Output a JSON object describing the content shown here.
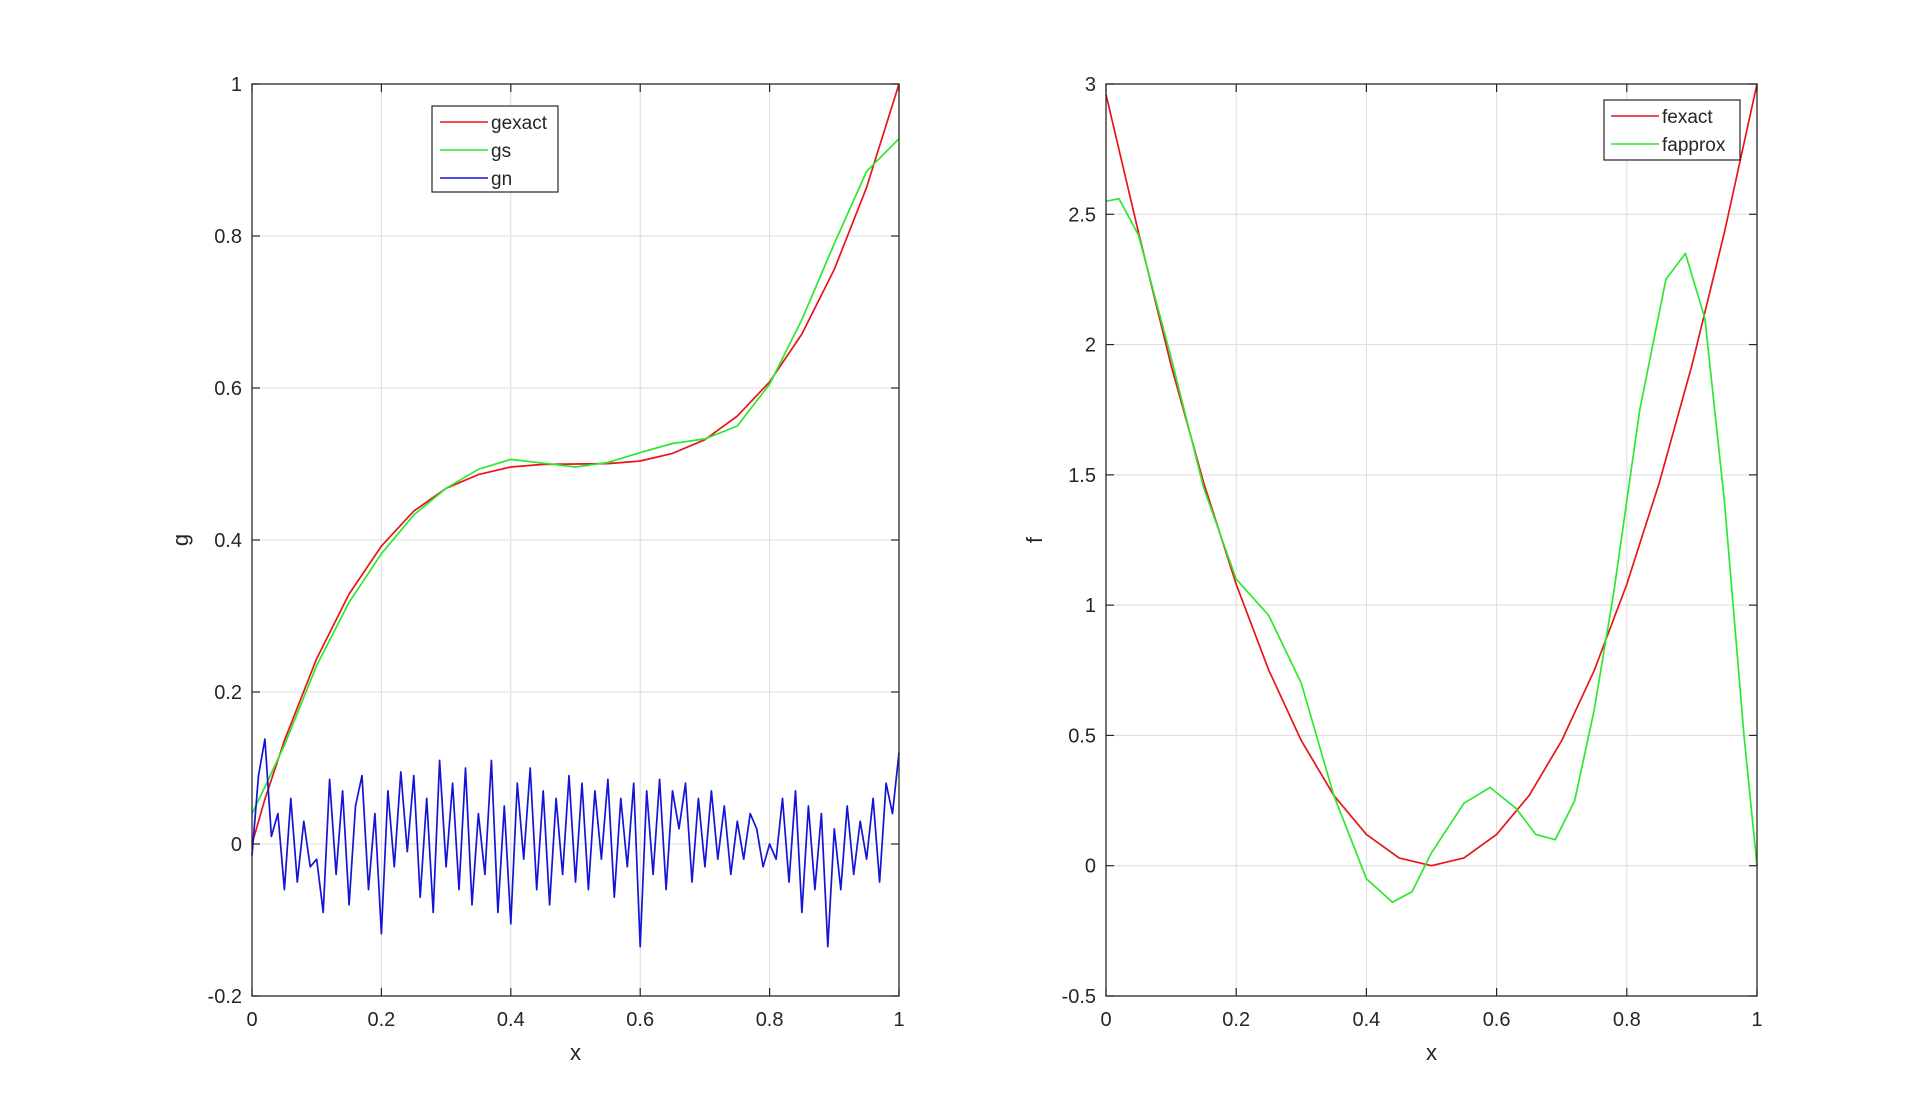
{
  "chart_data": [
    {
      "type": "line",
      "xlabel": "x",
      "ylabel": "g",
      "xlim": [
        0,
        1
      ],
      "ylim": [
        -0.2,
        1
      ],
      "xticks": [
        0,
        0.2,
        0.4,
        0.6,
        0.8,
        1
      ],
      "xtick_labels": [
        "0",
        "0.2",
        "0.4",
        "0.6",
        "0.8",
        "1"
      ],
      "yticks": [
        -0.2,
        0,
        0.2,
        0.4,
        0.6,
        0.8,
        1
      ],
      "ytick_labels": [
        "-0.2",
        "0",
        "0.2",
        "0.4",
        "0.6",
        "0.8",
        "1"
      ],
      "grid": true,
      "legend_position": "top-center",
      "series": [
        {
          "name": "gexact",
          "color": "#e8141a",
          "x": [
            0,
            0.02,
            0.05,
            0.1,
            0.15,
            0.2,
            0.25,
            0.3,
            0.35,
            0.4,
            0.45,
            0.5,
            0.55,
            0.6,
            0.65,
            0.7,
            0.75,
            0.8,
            0.85,
            0.9,
            0.95,
            1.0
          ],
          "y": [
            0.0,
            0.059,
            0.136,
            0.244,
            0.329,
            0.392,
            0.438,
            0.468,
            0.486,
            0.496,
            0.4995,
            0.5,
            0.5005,
            0.504,
            0.514,
            0.532,
            0.563,
            0.608,
            0.671,
            0.756,
            0.864,
            1.0
          ]
        },
        {
          "name": "gs",
          "color": "#2ee82e",
          "x": [
            0,
            0.02,
            0.05,
            0.1,
            0.15,
            0.2,
            0.25,
            0.3,
            0.35,
            0.4,
            0.45,
            0.5,
            0.55,
            0.6,
            0.65,
            0.7,
            0.75,
            0.8,
            0.85,
            0.9,
            0.95,
            1.0
          ],
          "y": [
            0.04,
            0.075,
            0.13,
            0.235,
            0.318,
            0.382,
            0.433,
            0.468,
            0.493,
            0.506,
            0.501,
            0.496,
            0.502,
            0.515,
            0.527,
            0.533,
            0.55,
            0.605,
            0.69,
            0.79,
            0.885,
            0.928
          ]
        },
        {
          "name": "gn",
          "color": "#1414d8",
          "x": [
            0,
            0.01,
            0.02,
            0.03,
            0.04,
            0.05,
            0.06,
            0.07,
            0.08,
            0.09,
            0.1,
            0.11,
            0.12,
            0.13,
            0.14,
            0.15,
            0.16,
            0.17,
            0.18,
            0.19,
            0.2,
            0.21,
            0.22,
            0.23,
            0.24,
            0.25,
            0.26,
            0.27,
            0.28,
            0.29,
            0.3,
            0.31,
            0.32,
            0.33,
            0.34,
            0.35,
            0.36,
            0.37,
            0.38,
            0.39,
            0.4,
            0.41,
            0.42,
            0.43,
            0.44,
            0.45,
            0.46,
            0.47,
            0.48,
            0.49,
            0.5,
            0.51,
            0.52,
            0.53,
            0.54,
            0.55,
            0.56,
            0.57,
            0.58,
            0.59,
            0.6,
            0.61,
            0.62,
            0.63,
            0.64,
            0.65,
            0.66,
            0.67,
            0.68,
            0.69,
            0.7,
            0.71,
            0.72,
            0.73,
            0.74,
            0.75,
            0.76,
            0.77,
            0.78,
            0.79,
            0.8,
            0.81,
            0.82,
            0.83,
            0.84,
            0.85,
            0.86,
            0.87,
            0.88,
            0.89,
            0.9,
            0.91,
            0.92,
            0.93,
            0.94,
            0.95,
            0.96,
            0.97,
            0.98,
            0.99,
            1.0
          ],
          "y": [
            -0.015,
            0.09,
            0.138,
            0.01,
            0.04,
            -0.06,
            0.06,
            -0.05,
            0.03,
            -0.03,
            -0.02,
            -0.09,
            0.085,
            -0.04,
            0.07,
            -0.08,
            0.05,
            0.09,
            -0.06,
            0.04,
            -0.118,
            0.07,
            -0.03,
            0.095,
            -0.01,
            0.09,
            -0.07,
            0.06,
            -0.09,
            0.11,
            -0.03,
            0.08,
            -0.06,
            0.1,
            -0.08,
            0.04,
            -0.04,
            0.11,
            -0.09,
            0.05,
            -0.105,
            0.08,
            -0.02,
            0.1,
            -0.06,
            0.07,
            -0.08,
            0.06,
            -0.04,
            0.09,
            -0.05,
            0.08,
            -0.06,
            0.07,
            -0.02,
            0.085,
            -0.07,
            0.06,
            -0.03,
            0.08,
            -0.135,
            0.07,
            -0.04,
            0.085,
            -0.06,
            0.07,
            0.02,
            0.08,
            -0.05,
            0.06,
            -0.03,
            0.07,
            -0.02,
            0.05,
            -0.04,
            0.03,
            -0.02,
            0.04,
            0.02,
            -0.03,
            0.0,
            -0.02,
            0.06,
            -0.05,
            0.07,
            -0.09,
            0.05,
            -0.06,
            0.04,
            -0.135,
            0.02,
            -0.06,
            0.05,
            -0.04,
            0.03,
            -0.02,
            0.06,
            -0.05,
            0.08,
            0.04,
            0.12
          ]
        }
      ]
    },
    {
      "type": "line",
      "xlabel": "x",
      "ylabel": "f",
      "xlim": [
        0,
        1
      ],
      "ylim": [
        -0.5,
        3
      ],
      "xticks": [
        0,
        0.2,
        0.4,
        0.6,
        0.8,
        1
      ],
      "xtick_labels": [
        "0",
        "0.2",
        "0.4",
        "0.6",
        "0.8",
        "1"
      ],
      "yticks": [
        -0.5,
        0,
        0.5,
        1,
        1.5,
        2,
        2.5,
        3
      ],
      "ytick_labels": [
        "-0.5",
        "0",
        "0.5",
        "1",
        "1.5",
        "2",
        "2.5",
        "3"
      ],
      "grid": true,
      "legend_position": "top-right",
      "series": [
        {
          "name": "fexact",
          "color": "#e8141a",
          "x": [
            0,
            0.05,
            0.1,
            0.15,
            0.2,
            0.25,
            0.3,
            0.35,
            0.4,
            0.45,
            0.5,
            0.55,
            0.6,
            0.65,
            0.7,
            0.75,
            0.8,
            0.85,
            0.9,
            0.95,
            1.0
          ],
          "y": [
            2.96,
            2.43,
            1.92,
            1.47,
            1.08,
            0.75,
            0.48,
            0.27,
            0.12,
            0.03,
            0.0,
            0.03,
            0.12,
            0.27,
            0.48,
            0.75,
            1.08,
            1.47,
            1.92,
            2.43,
            3.0
          ]
        },
        {
          "name": "fapprox",
          "color": "#2ee82e",
          "x": [
            0,
            0.02,
            0.05,
            0.1,
            0.15,
            0.2,
            0.25,
            0.3,
            0.35,
            0.4,
            0.44,
            0.47,
            0.5,
            0.55,
            0.59,
            0.63,
            0.66,
            0.69,
            0.72,
            0.75,
            0.78,
            0.82,
            0.86,
            0.89,
            0.92,
            0.95,
            0.98,
            1.0
          ],
          "y": [
            2.55,
            2.56,
            2.42,
            1.95,
            1.45,
            1.1,
            0.96,
            0.7,
            0.27,
            -0.05,
            -0.14,
            -0.1,
            0.05,
            0.24,
            0.3,
            0.22,
            0.12,
            0.1,
            0.25,
            0.6,
            1.05,
            1.75,
            2.25,
            2.35,
            2.1,
            1.4,
            0.5,
            0.0
          ]
        }
      ]
    }
  ]
}
